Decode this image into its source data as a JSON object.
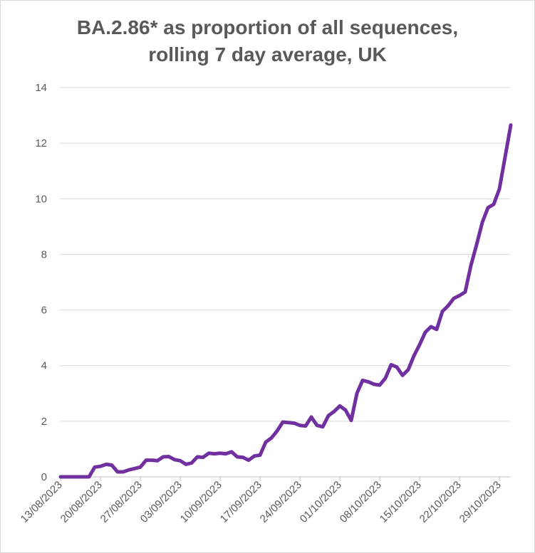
{
  "chart_data": {
    "type": "line",
    "title_lines": [
      "BA.2.86* as proportion of all sequences,",
      "rolling 7 day average, UK"
    ],
    "xlabel": "",
    "ylabel": "",
    "ylim": [
      0,
      14
    ],
    "yticks": [
      "0",
      "2",
      "4",
      "6",
      "8",
      "10",
      "12",
      "14"
    ],
    "xticks": [
      "13/08/2023",
      "20/08/2023",
      "27/08/2023",
      "03/09/2023",
      "10/09/2023",
      "17/09/2023",
      "24/09/2023",
      "01/10/2023",
      "08/10/2023",
      "15/10/2023",
      "22/10/2023",
      "29/10/2023"
    ],
    "x_start": "13/08/2023",
    "x_end": "03/11/2023",
    "grid": true,
    "line_color": "#7030a0",
    "series": [
      {
        "values": [
          0,
          0,
          0,
          0,
          0,
          0,
          0.35,
          0.38,
          0.45,
          0.42,
          0.18,
          0.18,
          0.25,
          0.3,
          0.35,
          0.6,
          0.6,
          0.58,
          0.72,
          0.73,
          0.62,
          0.58,
          0.45,
          0.5,
          0.72,
          0.7,
          0.85,
          0.83,
          0.85,
          0.83,
          0.9,
          0.72,
          0.7,
          0.6,
          0.75,
          0.78,
          1.25,
          1.4,
          1.65,
          1.97,
          1.95,
          1.93,
          1.85,
          1.83,
          2.15,
          1.85,
          1.8,
          2.2,
          2.35,
          2.55,
          2.4,
          2.03,
          3.0,
          3.47,
          3.42,
          3.33,
          3.3,
          3.55,
          4.03,
          3.95,
          3.65,
          3.85,
          4.35,
          4.75,
          5.2,
          5.4,
          5.3,
          5.95,
          6.15,
          6.42,
          6.52,
          6.65,
          7.6,
          8.35,
          9.15,
          9.68,
          9.8,
          10.35,
          11.5,
          12.65
        ]
      }
    ]
  }
}
